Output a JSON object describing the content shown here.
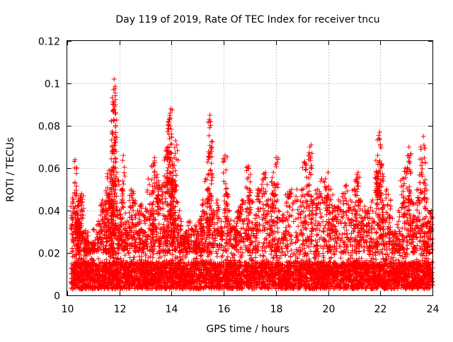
{
  "chart_data": {
    "type": "scatter",
    "title": "Day 119 of 2019, Rate Of TEC Index for receiver tncu",
    "xlabel": "GPS time / hours",
    "ylabel": "ROTI / TECUs",
    "xlim": [
      10,
      24
    ],
    "ylim": [
      0,
      0.12
    ],
    "x_ticks": [
      10,
      12,
      14,
      16,
      18,
      20,
      22,
      24
    ],
    "x_tick_labels": [
      "10",
      "12",
      "14",
      "16",
      "18",
      "20",
      "22",
      "24"
    ],
    "y_ticks": [
      0,
      0.02,
      0.04,
      0.06,
      0.08,
      0.1,
      0.12
    ],
    "y_tick_labels": [
      "0",
      "0.02",
      "0.04",
      "0.06",
      "0.08",
      "0.1",
      "0.12"
    ],
    "grid": true,
    "marker": "+",
    "marker_color": "#ff0000",
    "series": [
      {
        "name": "ROTI",
        "description": "Dense scatter of ROTI samples for all satellites; baseline 0.003-0.02 TECU/s with episodic enhancements",
        "points": [
          [
            10.2,
            0.046
          ],
          [
            10.3,
            0.064
          ],
          [
            10.35,
            0.06
          ],
          [
            10.4,
            0.039
          ],
          [
            10.45,
            0.042
          ],
          [
            10.5,
            0.047
          ],
          [
            10.55,
            0.048
          ],
          [
            10.65,
            0.03
          ],
          [
            10.8,
            0.028
          ],
          [
            11.0,
            0.025
          ],
          [
            11.2,
            0.035
          ],
          [
            11.35,
            0.045
          ],
          [
            11.45,
            0.043
          ],
          [
            11.55,
            0.055
          ],
          [
            11.6,
            0.059
          ],
          [
            11.65,
            0.05
          ],
          [
            11.7,
            0.045
          ],
          [
            11.72,
            0.07
          ],
          [
            11.75,
            0.087
          ],
          [
            11.77,
            0.09
          ],
          [
            11.78,
            0.097
          ],
          [
            11.8,
            0.102
          ],
          [
            11.82,
            0.089
          ],
          [
            11.9,
            0.058
          ],
          [
            12.0,
            0.04
          ],
          [
            12.1,
            0.05
          ],
          [
            12.15,
            0.066
          ],
          [
            12.3,
            0.035
          ],
          [
            12.45,
            0.05
          ],
          [
            12.55,
            0.048
          ],
          [
            12.7,
            0.04
          ],
          [
            12.85,
            0.043
          ],
          [
            13.0,
            0.041
          ],
          [
            13.1,
            0.055
          ],
          [
            13.25,
            0.043
          ],
          [
            13.3,
            0.062
          ],
          [
            13.35,
            0.065
          ],
          [
            13.45,
            0.057
          ],
          [
            13.5,
            0.054
          ],
          [
            13.6,
            0.05
          ],
          [
            13.7,
            0.053
          ],
          [
            13.8,
            0.068
          ],
          [
            13.85,
            0.07
          ],
          [
            13.9,
            0.076
          ],
          [
            13.92,
            0.083
          ],
          [
            13.95,
            0.086
          ],
          [
            13.97,
            0.088
          ],
          [
            14.0,
            0.067
          ],
          [
            14.05,
            0.06
          ],
          [
            14.1,
            0.065
          ],
          [
            14.15,
            0.073
          ],
          [
            14.2,
            0.071
          ],
          [
            14.3,
            0.04
          ],
          [
            14.4,
            0.028
          ],
          [
            14.55,
            0.03
          ],
          [
            14.7,
            0.035
          ],
          [
            14.9,
            0.033
          ],
          [
            15.0,
            0.03
          ],
          [
            15.1,
            0.036
          ],
          [
            15.2,
            0.045
          ],
          [
            15.3,
            0.055
          ],
          [
            15.4,
            0.05
          ],
          [
            15.45,
            0.083
          ],
          [
            15.47,
            0.085
          ],
          [
            15.5,
            0.082
          ],
          [
            15.6,
            0.04
          ],
          [
            15.75,
            0.045
          ],
          [
            15.9,
            0.035
          ],
          [
            16.05,
            0.066
          ],
          [
            16.1,
            0.048
          ],
          [
            16.2,
            0.04
          ],
          [
            16.4,
            0.035
          ],
          [
            16.55,
            0.04
          ],
          [
            16.7,
            0.045
          ],
          [
            16.9,
            0.055
          ],
          [
            16.95,
            0.061
          ],
          [
            17.05,
            0.045
          ],
          [
            17.2,
            0.038
          ],
          [
            17.35,
            0.05
          ],
          [
            17.5,
            0.055
          ],
          [
            17.6,
            0.058
          ],
          [
            17.7,
            0.045
          ],
          [
            17.85,
            0.048
          ],
          [
            17.9,
            0.058
          ],
          [
            18.0,
            0.065
          ],
          [
            18.1,
            0.04
          ],
          [
            18.3,
            0.038
          ],
          [
            18.45,
            0.048
          ],
          [
            18.6,
            0.05
          ],
          [
            18.8,
            0.05
          ],
          [
            19.0,
            0.05
          ],
          [
            19.1,
            0.063
          ],
          [
            19.2,
            0.052
          ],
          [
            19.3,
            0.07
          ],
          [
            19.35,
            0.071
          ],
          [
            19.45,
            0.045
          ],
          [
            19.6,
            0.05
          ],
          [
            19.75,
            0.055
          ],
          [
            19.9,
            0.055
          ],
          [
            20.0,
            0.058
          ],
          [
            20.1,
            0.05
          ],
          [
            20.25,
            0.042
          ],
          [
            20.4,
            0.045
          ],
          [
            20.55,
            0.048
          ],
          [
            20.7,
            0.052
          ],
          [
            20.85,
            0.045
          ],
          [
            21.0,
            0.05
          ],
          [
            21.1,
            0.057
          ],
          [
            21.15,
            0.058
          ],
          [
            21.25,
            0.045
          ],
          [
            21.4,
            0.042
          ],
          [
            21.55,
            0.04
          ],
          [
            21.7,
            0.045
          ],
          [
            21.85,
            0.058
          ],
          [
            21.9,
            0.066
          ],
          [
            21.95,
            0.074
          ],
          [
            21.98,
            0.077
          ],
          [
            22.05,
            0.062
          ],
          [
            22.15,
            0.042
          ],
          [
            22.25,
            0.05
          ],
          [
            22.4,
            0.045
          ],
          [
            22.55,
            0.03
          ],
          [
            22.7,
            0.04
          ],
          [
            22.85,
            0.055
          ],
          [
            22.95,
            0.06
          ],
          [
            23.05,
            0.066
          ],
          [
            23.1,
            0.07
          ],
          [
            23.2,
            0.045
          ],
          [
            23.3,
            0.037
          ],
          [
            23.45,
            0.05
          ],
          [
            23.55,
            0.07
          ],
          [
            23.65,
            0.075
          ],
          [
            23.75,
            0.052
          ],
          [
            23.85,
            0.035
          ],
          [
            23.95,
            0.04
          ]
        ],
        "baseline_range": [
          0.003,
          0.02
        ]
      }
    ]
  }
}
